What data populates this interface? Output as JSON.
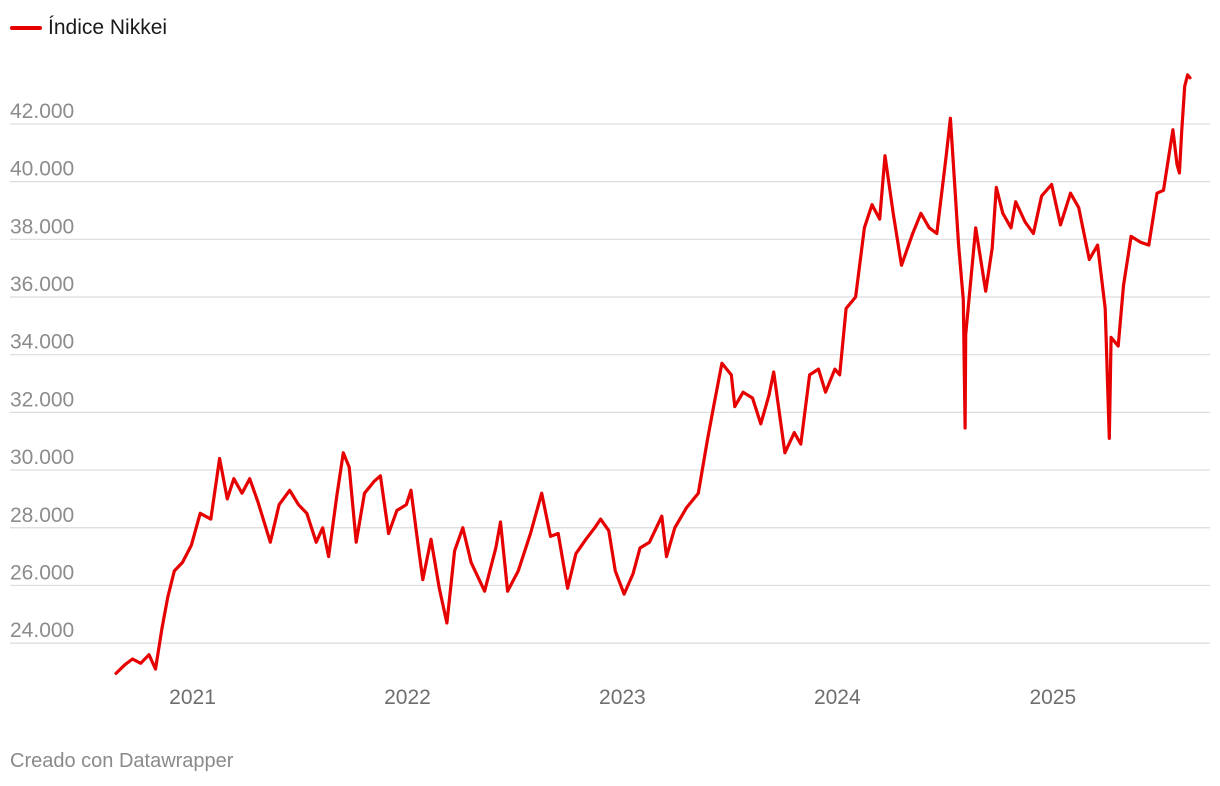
{
  "legend": {
    "label": "Índice Nikkei"
  },
  "footer": {
    "credit": "Creado con Datawrapper"
  },
  "colors": {
    "series": "#e60000",
    "grid": "#dcdcdc",
    "tick_text": "#8c8c8c"
  },
  "chart_data": {
    "type": "line",
    "title": "",
    "xlabel": "",
    "ylabel": "",
    "grid": true,
    "legend_position": "top-left",
    "ylim": [
      23000,
      43800
    ],
    "xlim": [
      "2020-08-24",
      "2025-08-22"
    ],
    "y_ticks": [
      24000,
      26000,
      28000,
      30000,
      32000,
      34000,
      36000,
      38000,
      40000,
      42000
    ],
    "y_tick_labels": [
      "24.000",
      "26.000",
      "28.000",
      "30.000",
      "32.000",
      "34.000",
      "36.000",
      "38.000",
      "40.000",
      "42.000"
    ],
    "x_ticks": [
      "2021-01-01",
      "2022-01-01",
      "2023-01-01",
      "2024-01-01",
      "2025-01-01"
    ],
    "x_tick_labels": [
      "2021",
      "2022",
      "2023",
      "2024",
      "2025"
    ],
    "series": [
      {
        "name": "Índice Nikkei",
        "color": "#e60000",
        "points": [
          [
            "2020-08-24",
            22950
          ],
          [
            "2020-09-08",
            23250
          ],
          [
            "2020-09-21",
            23450
          ],
          [
            "2020-10-05",
            23300
          ],
          [
            "2020-10-19",
            23600
          ],
          [
            "2020-10-30",
            23100
          ],
          [
            "2020-11-10",
            24500
          ],
          [
            "2020-11-20",
            25600
          ],
          [
            "2020-12-01",
            26500
          ],
          [
            "2020-12-15",
            26800
          ],
          [
            "2020-12-30",
            27400
          ],
          [
            "2021-01-14",
            28500
          ],
          [
            "2021-02-01",
            28300
          ],
          [
            "2021-02-16",
            30400
          ],
          [
            "2021-03-01",
            29000
          ],
          [
            "2021-03-12",
            29700
          ],
          [
            "2021-03-26",
            29200
          ],
          [
            "2021-04-08",
            29700
          ],
          [
            "2021-04-22",
            28900
          ],
          [
            "2021-05-13",
            27500
          ],
          [
            "2021-05-28",
            28800
          ],
          [
            "2021-06-15",
            29300
          ],
          [
            "2021-06-30",
            28800
          ],
          [
            "2021-07-14",
            28500
          ],
          [
            "2021-07-30",
            27500
          ],
          [
            "2021-08-10",
            28000
          ],
          [
            "2021-08-20",
            27000
          ],
          [
            "2021-09-03",
            29100
          ],
          [
            "2021-09-14",
            30600
          ],
          [
            "2021-09-24",
            30100
          ],
          [
            "2021-10-06",
            27500
          ],
          [
            "2021-10-20",
            29200
          ],
          [
            "2021-11-05",
            29600
          ],
          [
            "2021-11-16",
            29800
          ],
          [
            "2021-11-30",
            27800
          ],
          [
            "2021-12-14",
            28600
          ],
          [
            "2021-12-30",
            28800
          ],
          [
            "2022-01-07",
            29300
          ],
          [
            "2022-01-19",
            27400
          ],
          [
            "2022-01-27",
            26200
          ],
          [
            "2022-02-10",
            27600
          ],
          [
            "2022-02-24",
            25900
          ],
          [
            "2022-03-09",
            24700
          ],
          [
            "2022-03-22",
            27200
          ],
          [
            "2022-04-05",
            28000
          ],
          [
            "2022-04-19",
            26800
          ],
          [
            "2022-05-12",
            25800
          ],
          [
            "2022-05-31",
            27300
          ],
          [
            "2022-06-08",
            28200
          ],
          [
            "2022-06-20",
            25800
          ],
          [
            "2022-07-08",
            26500
          ],
          [
            "2022-07-29",
            27800
          ],
          [
            "2022-08-17",
            29200
          ],
          [
            "2022-09-01",
            27700
          ],
          [
            "2022-09-14",
            27800
          ],
          [
            "2022-09-30",
            25900
          ],
          [
            "2022-10-14",
            27100
          ],
          [
            "2022-10-31",
            27600
          ],
          [
            "2022-11-15",
            28000
          ],
          [
            "2022-11-25",
            28300
          ],
          [
            "2022-12-09",
            27900
          ],
          [
            "2022-12-20",
            26500
          ],
          [
            "2023-01-04",
            25700
          ],
          [
            "2023-01-19",
            26400
          ],
          [
            "2023-01-31",
            27300
          ],
          [
            "2023-02-16",
            27500
          ],
          [
            "2023-03-09",
            28400
          ],
          [
            "2023-03-17",
            27000
          ],
          [
            "2023-03-31",
            28000
          ],
          [
            "2023-04-20",
            28700
          ],
          [
            "2023-05-10",
            29200
          ],
          [
            "2023-05-25",
            31000
          ],
          [
            "2023-06-05",
            32200
          ],
          [
            "2023-06-19",
            33700
          ],
          [
            "2023-07-05",
            33300
          ],
          [
            "2023-07-11",
            32200
          ],
          [
            "2023-07-25",
            32700
          ],
          [
            "2023-08-10",
            32500
          ],
          [
            "2023-08-24",
            31600
          ],
          [
            "2023-09-07",
            32600
          ],
          [
            "2023-09-15",
            33400
          ],
          [
            "2023-10-04",
            30600
          ],
          [
            "2023-10-20",
            31300
          ],
          [
            "2023-10-31",
            30900
          ],
          [
            "2023-11-15",
            33300
          ],
          [
            "2023-11-30",
            33500
          ],
          [
            "2023-12-12",
            32700
          ],
          [
            "2023-12-28",
            33500
          ],
          [
            "2024-01-05",
            33300
          ],
          [
            "2024-01-16",
            35600
          ],
          [
            "2024-02-01",
            36000
          ],
          [
            "2024-02-16",
            38400
          ],
          [
            "2024-02-29",
            39200
          ],
          [
            "2024-03-13",
            38700
          ],
          [
            "2024-03-22",
            40900
          ],
          [
            "2024-04-05",
            38900
          ],
          [
            "2024-04-19",
            37100
          ],
          [
            "2024-05-08",
            38200
          ],
          [
            "2024-05-22",
            38900
          ],
          [
            "2024-06-05",
            38400
          ],
          [
            "2024-06-18",
            38200
          ],
          [
            "2024-07-04",
            40900
          ],
          [
            "2024-07-11",
            42200
          ],
          [
            "2024-07-25",
            37800
          ],
          [
            "2024-08-02",
            35900
          ],
          [
            "2024-08-05",
            31460
          ],
          [
            "2024-08-06",
            34700
          ],
          [
            "2024-08-23",
            38400
          ],
          [
            "2024-09-09",
            36200
          ],
          [
            "2024-09-20",
            37700
          ],
          [
            "2024-09-27",
            39800
          ],
          [
            "2024-10-08",
            38900
          ],
          [
            "2024-10-22",
            38400
          ],
          [
            "2024-10-30",
            39300
          ],
          [
            "2024-11-15",
            38600
          ],
          [
            "2024-11-29",
            38200
          ],
          [
            "2024-12-13",
            39500
          ],
          [
            "2024-12-30",
            39900
          ],
          [
            "2025-01-14",
            38500
          ],
          [
            "2025-01-31",
            39600
          ],
          [
            "2025-02-14",
            39100
          ],
          [
            "2025-03-04",
            37300
          ],
          [
            "2025-03-18",
            37800
          ],
          [
            "2025-03-31",
            35600
          ],
          [
            "2025-04-07",
            31100
          ],
          [
            "2025-04-10",
            34600
          ],
          [
            "2025-04-22",
            34300
          ],
          [
            "2025-05-01",
            36400
          ],
          [
            "2025-05-14",
            38100
          ],
          [
            "2025-05-30",
            37900
          ],
          [
            "2025-06-13",
            37800
          ],
          [
            "2025-06-27",
            39600
          ],
          [
            "2025-07-08",
            39700
          ],
          [
            "2025-07-24",
            41800
          ],
          [
            "2025-07-31",
            40600
          ],
          [
            "2025-08-04",
            40300
          ],
          [
            "2025-08-08",
            41800
          ],
          [
            "2025-08-13",
            43300
          ],
          [
            "2025-08-18",
            43700
          ],
          [
            "2025-08-22",
            43600
          ]
        ]
      }
    ]
  }
}
